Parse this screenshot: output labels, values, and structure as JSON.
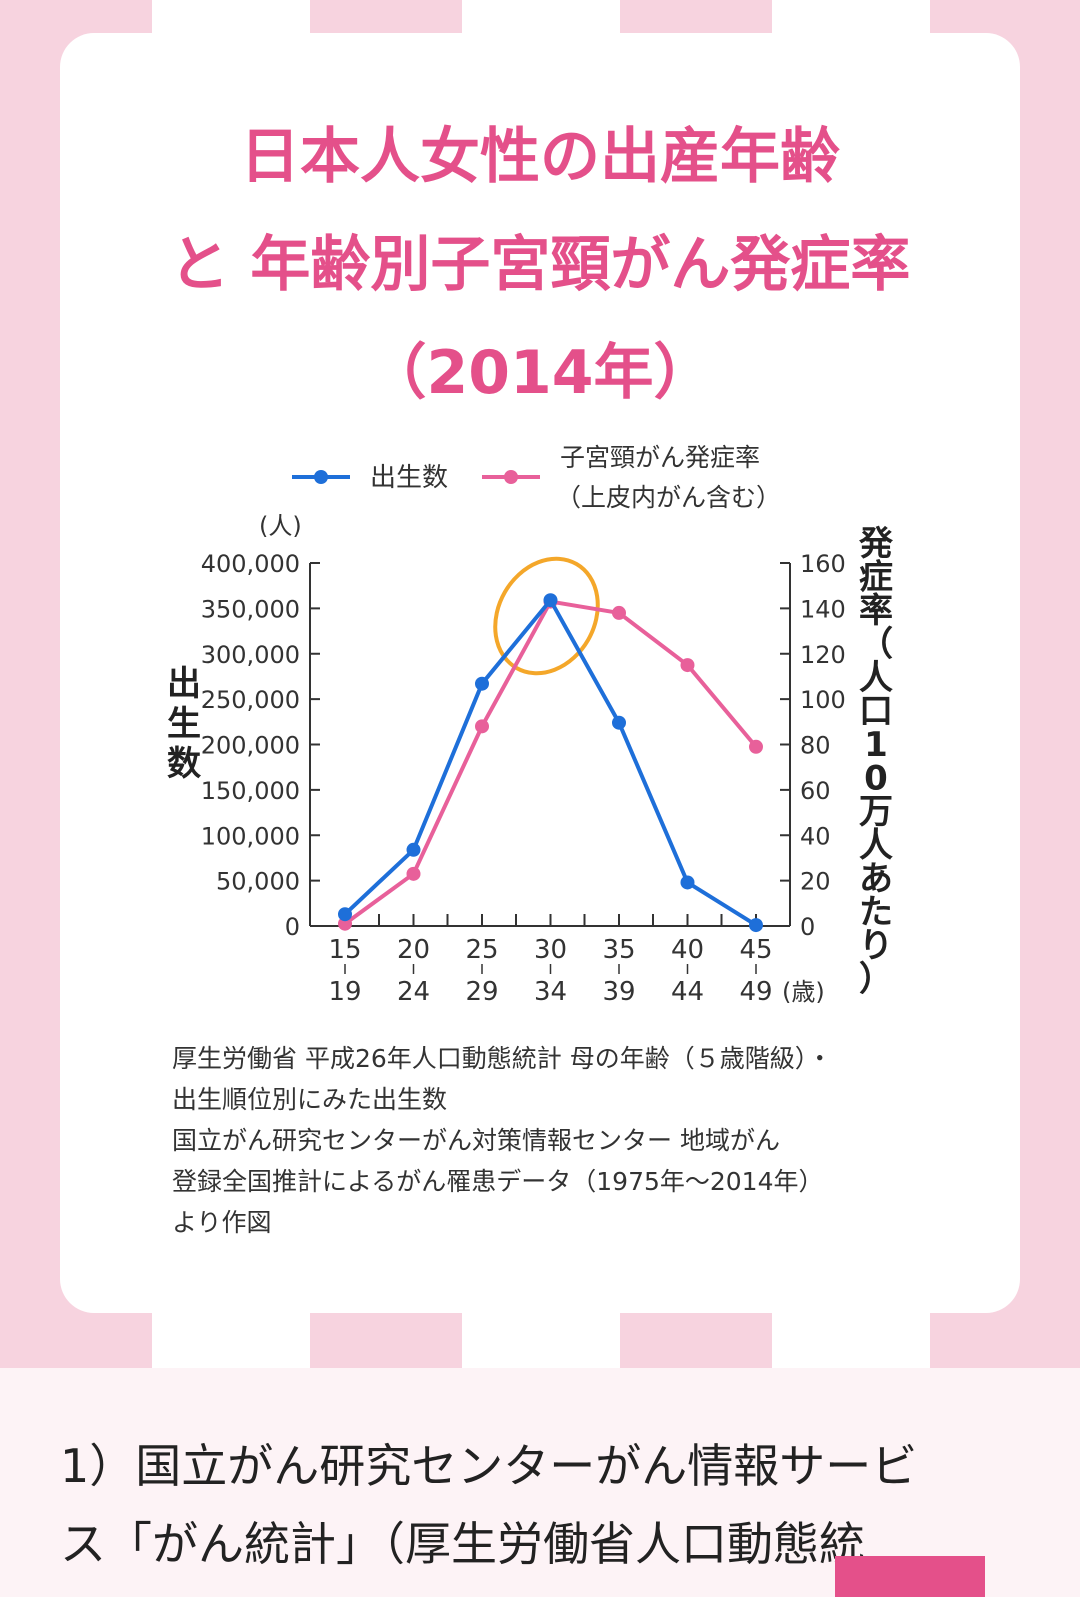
{
  "title_lines": [
    "日本人女性の出産年齢",
    "と 年齢別子宮頸がん発症率",
    "（2014年）"
  ],
  "chart_data": {
    "type": "line",
    "x": [
      "15-19",
      "20-24",
      "25-29",
      "30-34",
      "35-39",
      "40-44",
      "45-49"
    ],
    "x_tick_top": [
      "15",
      "20",
      "25",
      "30",
      "35",
      "40",
      "45"
    ],
    "x_tick_bottom": [
      "19",
      "24",
      "29",
      "34",
      "39",
      "44",
      "49"
    ],
    "x_unit": "(歳)",
    "y_left": {
      "label": "出生数",
      "unit": "(人)",
      "range": [
        0,
        400000
      ],
      "ticks": [
        "0",
        "50,000",
        "100,000",
        "150,000",
        "200,000",
        "250,000",
        "300,000",
        "350,000",
        "400,000"
      ]
    },
    "y_right": {
      "label": "発症率（人口10万人あたり）",
      "range": [
        0,
        160
      ],
      "ticks": [
        "0",
        "20",
        "40",
        "60",
        "80",
        "100",
        "120",
        "140",
        "160"
      ]
    },
    "series": [
      {
        "name": "出生数",
        "axis": "left",
        "color": "#1e6fd9",
        "values": [
          13000,
          84000,
          267000,
          359000,
          224000,
          48000,
          1000
        ]
      },
      {
        "name": "子宮頸がん発症率",
        "name_line2": "（上皮内がん含む）",
        "axis": "right",
        "color": "#e8609a",
        "values": [
          1,
          23,
          88,
          143,
          138,
          115,
          79
        ]
      }
    ],
    "highlight": {
      "category": "30-34",
      "color": "#f4a72a"
    },
    "legend": "top"
  },
  "caption_lines": [
    "厚生労働省 平成26年人口動態統計 母の年齢（５歳階級）・",
    "出生順位別にみた出生数",
    "国立がん研究センターがん対策情報センター 地域がん",
    "登録全国推計によるがん罹患データ（1975年〜2014年）",
    "より作図"
  ],
  "footnote_lines": [
    "1）国立がん研究センターがん情報サービ",
    "ス「がん統計」（厚生労働省人口動態統"
  ],
  "colors": {
    "title": "#e4508a",
    "stripe": "#f7d3df",
    "blue": "#1e6fd9",
    "pink": "#e8609a",
    "highlight": "#f4a72a"
  }
}
